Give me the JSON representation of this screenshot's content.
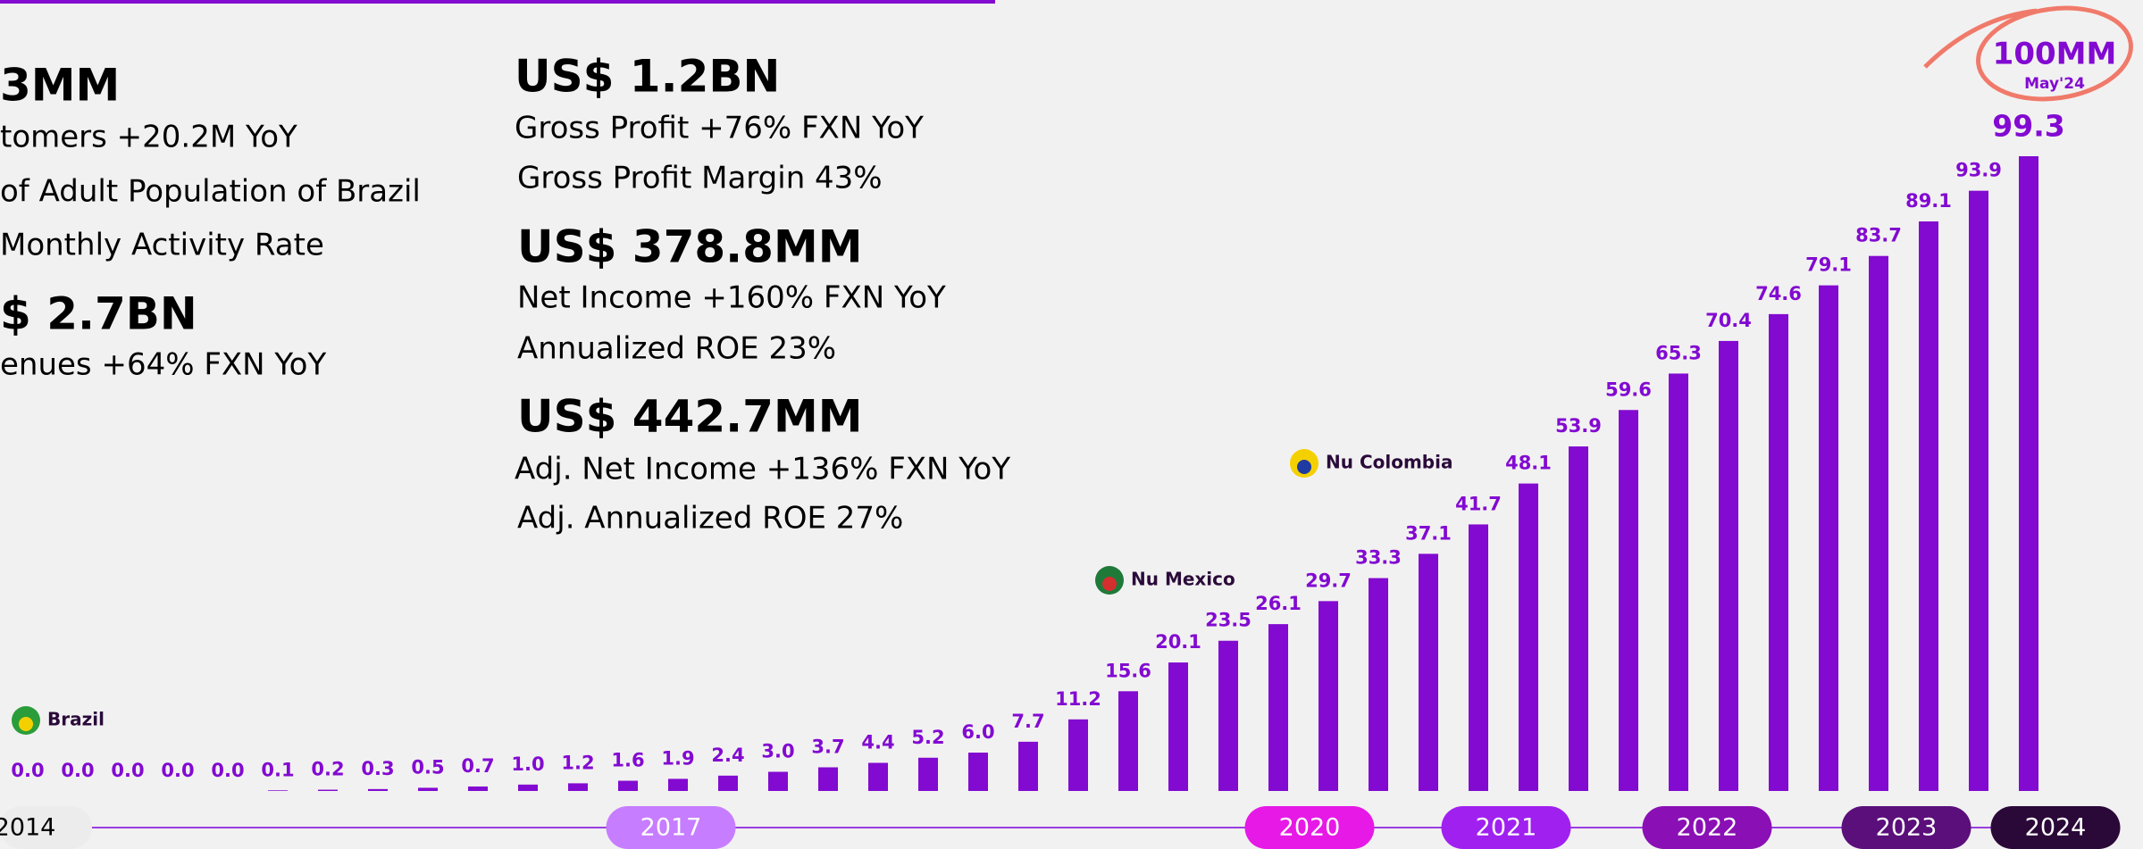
{
  "chart_data": {
    "type": "bar",
    "color": "#820ad1",
    "values": [
      0.0,
      0.0,
      0.0,
      0.0,
      0.0,
      0.1,
      0.2,
      0.3,
      0.5,
      0.7,
      1.0,
      1.2,
      1.6,
      1.9,
      2.4,
      3.0,
      3.7,
      4.4,
      5.2,
      6.0,
      7.7,
      11.2,
      15.6,
      20.1,
      23.5,
      26.1,
      29.7,
      33.3,
      37.1,
      41.7,
      48.1,
      53.9,
      59.6,
      65.3,
      70.4,
      74.6,
      79.1,
      83.7,
      89.1,
      93.9,
      99.3
    ],
    "value_labels": [
      "0.0",
      "0.0",
      "0.0",
      "0.0",
      "0.0",
      "0.1",
      "0.2",
      "0.3",
      "0.5",
      "0.7",
      "1.0",
      "1.2",
      "1.6",
      "1.9",
      "2.4",
      "3.0",
      "3.7",
      "4.4",
      "5.2",
      "6.0",
      "7.7",
      "11.2",
      "15.6",
      "20.1",
      "23.5",
      "26.1",
      "29.7",
      "33.3",
      "37.1",
      "41.7",
      "48.1",
      "53.9",
      "59.6",
      "65.3",
      "70.4",
      "74.6",
      "79.1",
      "83.7",
      "89.1",
      "93.9",
      "99.3"
    ],
    "timeline": [
      "2014",
      "2017",
      "2020",
      "2021",
      "2022",
      "2023",
      "2024"
    ],
    "markers": [
      "Brazil",
      "Nu Mexico",
      "Nu Colombia"
    ],
    "milestone": {
      "title": "100MM",
      "subtitle": "May'24"
    }
  },
  "kpis": {
    "left": [
      "3MM",
      "tomers +20.2M YoY",
      "of Adult Population of Brazil",
      "Monthly Activity Rate",
      "$ 2.7BN",
      "enues +64%  FXN YoY"
    ],
    "right": [
      "US$ 1.2BN",
      "Gross Profit +76%  FXN YoY",
      "Gross Profit Margin 43%",
      "US$ 378.8MM",
      "Net Income +160% FXN YoY",
      "Annualized ROE 23%",
      "US$ 442.7MM",
      "Adj. Net Income +136% FXN YoY",
      "Adj. Annualized ROE 27%"
    ]
  }
}
